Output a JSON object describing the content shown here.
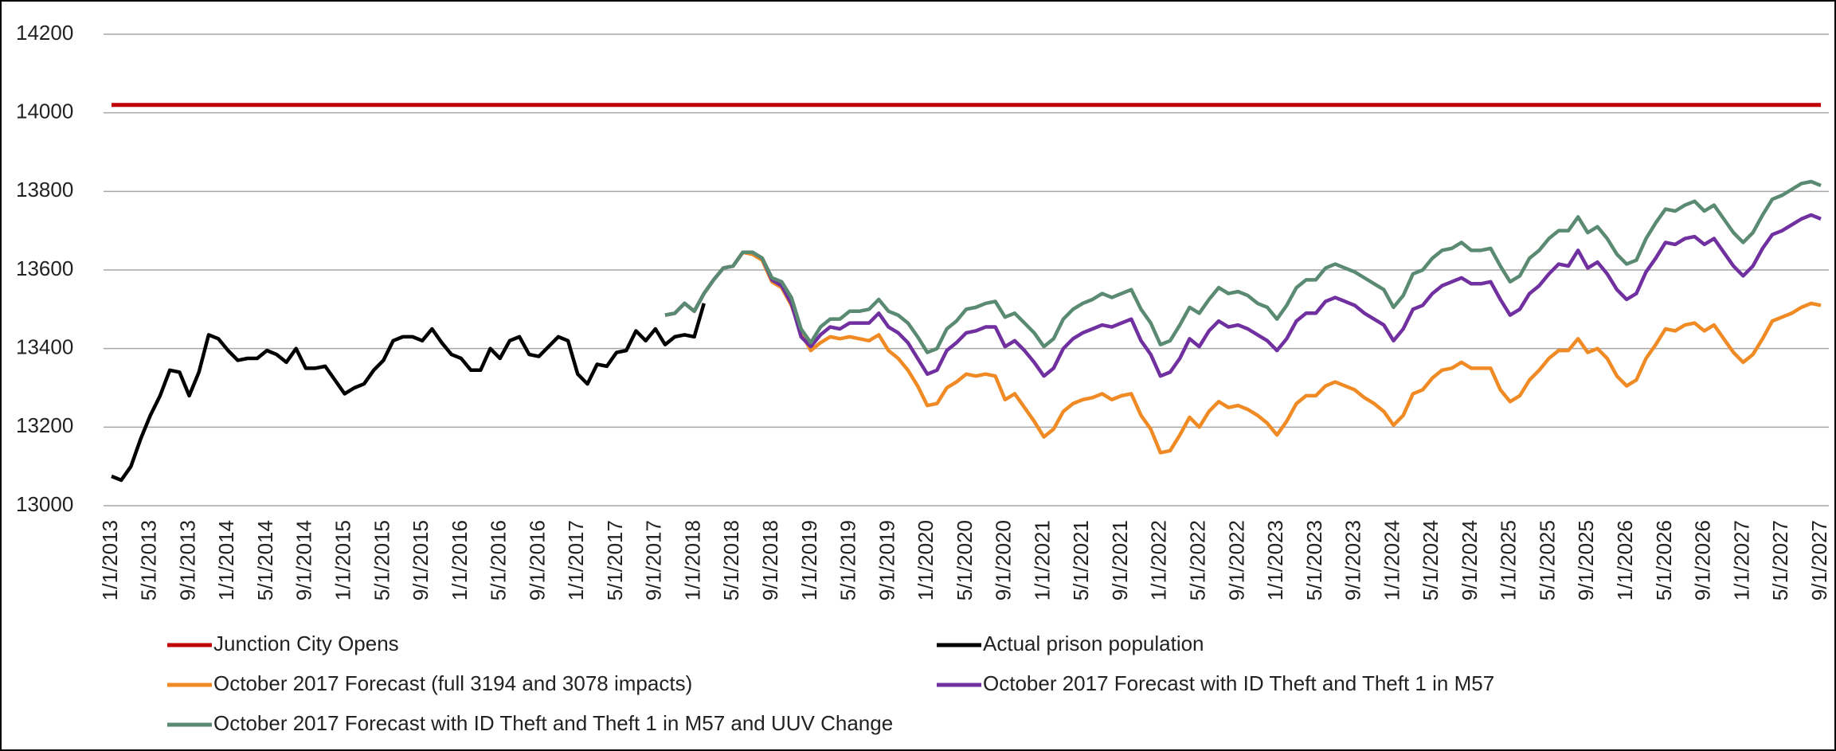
{
  "chart_data": {
    "type": "line",
    "categories": [
      "1/1/2013",
      null,
      null,
      null,
      "5/1/2013",
      null,
      null,
      null,
      "9/1/2013",
      null,
      null,
      null,
      "1/1/2014",
      null,
      null,
      null,
      "5/1/2014",
      null,
      null,
      null,
      "9/1/2014",
      null,
      null,
      null,
      "1/1/2015",
      null,
      null,
      null,
      "5/1/2015",
      null,
      null,
      null,
      "9/1/2015",
      null,
      null,
      null,
      "1/1/2016",
      null,
      null,
      null,
      "5/1/2016",
      null,
      null,
      null,
      "9/1/2016",
      null,
      null,
      null,
      "1/1/2017",
      null,
      null,
      null,
      "5/1/2017",
      null,
      null,
      null,
      "9/1/2017",
      null,
      null,
      null,
      "1/1/2018",
      null,
      null,
      null,
      "5/1/2018",
      null,
      null,
      null,
      "9/1/2018",
      null,
      null,
      null,
      "1/1/2019",
      null,
      null,
      null,
      "5/1/2019",
      null,
      null,
      null,
      "9/1/2019",
      null,
      null,
      null,
      "1/1/2020",
      null,
      null,
      null,
      "5/1/2020",
      null,
      null,
      null,
      "9/1/2020",
      null,
      null,
      null,
      "1/1/2021",
      null,
      null,
      null,
      "5/1/2021",
      null,
      null,
      null,
      "9/1/2021",
      null,
      null,
      null,
      "1/1/2022",
      null,
      null,
      null,
      "5/1/2022",
      null,
      null,
      null,
      "9/1/2022",
      null,
      null,
      null,
      "1/1/2023",
      null,
      null,
      null,
      "5/1/2023",
      null,
      null,
      null,
      "9/1/2023",
      null,
      null,
      null,
      "1/1/2024",
      null,
      null,
      null,
      "5/1/2024",
      null,
      null,
      null,
      "9/1/2024",
      null,
      null,
      null,
      "1/1/2025",
      null,
      null,
      null,
      "5/1/2025",
      null,
      null,
      null,
      "9/1/2025",
      null,
      null,
      null,
      "1/1/2026",
      null,
      null,
      null,
      "5/1/2026",
      null,
      null,
      null,
      "9/1/2026",
      null,
      null,
      null,
      "1/1/2027",
      null,
      null,
      null,
      "5/1/2027",
      null,
      null,
      null,
      "9/1/2027"
    ],
    "reference_line": {
      "name": "Junction City Opens",
      "color": "#c00000",
      "value": 14020
    },
    "series": [
      {
        "name": "Actual prison population",
        "color": "#000000",
        "values": [
          13075,
          13065,
          13100,
          13170,
          13230,
          13280,
          13345,
          13340,
          13280,
          13340,
          13435,
          13425,
          13395,
          13370,
          13375,
          13375,
          13395,
          13385,
          13365,
          13400,
          13350,
          13350,
          13355,
          13320,
          13285,
          13300,
          13310,
          13345,
          13370,
          13420,
          13430,
          13430,
          13420,
          13450,
          13415,
          13385,
          13375,
          13345,
          13345,
          13400,
          13375,
          13420,
          13430,
          13385,
          13380,
          13405,
          13430,
          13420,
          13335,
          13310,
          13360,
          13355,
          13390,
          13395,
          13445,
          13420,
          13450,
          13410,
          13430,
          13435,
          13430,
          13515,
          null,
          null,
          null,
          null,
          null,
          null,
          null,
          null,
          null,
          null,
          null,
          null,
          null,
          null,
          null,
          null,
          null,
          null,
          null,
          null,
          null,
          null,
          null,
          null,
          null,
          null,
          null,
          null,
          null,
          null,
          null,
          null,
          null,
          null,
          null,
          null,
          null,
          null,
          null,
          null,
          null,
          null,
          null,
          null,
          null,
          null,
          null,
          null,
          null,
          null,
          null,
          null,
          null,
          null,
          null,
          null,
          null,
          null,
          null,
          null,
          null,
          null,
          null,
          null,
          null,
          null,
          null,
          null,
          null,
          null,
          null,
          null,
          null,
          null,
          null,
          null,
          null,
          null,
          null,
          null,
          null,
          null,
          null,
          null,
          null,
          null,
          null,
          null,
          null,
          null,
          null,
          null,
          null,
          null,
          null,
          null,
          null,
          null,
          null,
          null,
          null,
          null,
          null,
          null,
          null,
          null,
          null,
          null,
          null,
          null,
          null,
          null,
          null,
          null,
          null
        ]
      },
      {
        "name": "October 2017 Forecast (full 3194 and 3078 impacts)",
        "color": "#f08a24",
        "values": [
          null,
          null,
          null,
          null,
          null,
          null,
          null,
          null,
          null,
          null,
          null,
          null,
          null,
          null,
          null,
          null,
          null,
          null,
          null,
          null,
          null,
          null,
          null,
          null,
          null,
          null,
          null,
          null,
          null,
          null,
          null,
          null,
          null,
          null,
          null,
          null,
          null,
          null,
          null,
          null,
          null,
          null,
          null,
          null,
          null,
          null,
          null,
          null,
          null,
          null,
          null,
          null,
          null,
          null,
          null,
          null,
          null,
          13485,
          13490,
          13515,
          13495,
          13540,
          13575,
          13605,
          13610,
          13645,
          13640,
          13625,
          13570,
          13555,
          13510,
          13440,
          13395,
          13415,
          13430,
          13425,
          13430,
          13425,
          13420,
          13435,
          13395,
          13375,
          13345,
          13305,
          13255,
          13260,
          13300,
          13315,
          13335,
          13330,
          13335,
          13330,
          13270,
          13285,
          13250,
          13215,
          13175,
          13195,
          13240,
          13260,
          13270,
          13275,
          13285,
          13270,
          13280,
          13285,
          13230,
          13195,
          13135,
          13140,
          13180,
          13225,
          13200,
          13240,
          13265,
          13250,
          13255,
          13245,
          13230,
          13210,
          13180,
          13215,
          13260,
          13280,
          13280,
          13305,
          13315,
          13305,
          13295,
          13275,
          13260,
          13240,
          13205,
          13230,
          13285,
          13295,
          13325,
          13345,
          13350,
          13365,
          13350,
          13350,
          13350,
          13295,
          13265,
          13280,
          13320,
          13345,
          13375,
          13395,
          13395,
          13425,
          13390,
          13400,
          13375,
          13330,
          13305,
          13320,
          13375,
          13410,
          13450,
          13445,
          13460,
          13465,
          13445,
          13460,
          13425,
          13390,
          13365,
          13385,
          13425,
          13470,
          13480,
          13490,
          13505,
          13515,
          13510
        ]
      },
      {
        "name": "October 2017 Forecast with ID Theft and Theft 1 in M57",
        "color": "#7030a0",
        "values": [
          null,
          null,
          null,
          null,
          null,
          null,
          null,
          null,
          null,
          null,
          null,
          null,
          null,
          null,
          null,
          null,
          null,
          null,
          null,
          null,
          null,
          null,
          null,
          null,
          null,
          null,
          null,
          null,
          null,
          null,
          null,
          null,
          null,
          null,
          null,
          null,
          null,
          null,
          null,
          null,
          null,
          null,
          null,
          null,
          null,
          null,
          null,
          null,
          null,
          null,
          null,
          null,
          null,
          null,
          null,
          null,
          null,
          13485,
          13490,
          13515,
          13495,
          13540,
          13575,
          13605,
          13610,
          13645,
          13645,
          13630,
          13575,
          13560,
          13515,
          13430,
          13405,
          13435,
          13455,
          13450,
          13465,
          13465,
          13465,
          13490,
          13455,
          13440,
          13415,
          13375,
          13335,
          13345,
          13395,
          13415,
          13440,
          13445,
          13455,
          13455,
          13405,
          13420,
          13395,
          13365,
          13330,
          13350,
          13400,
          13425,
          13440,
          13450,
          13460,
          13455,
          13465,
          13475,
          13420,
          13385,
          13330,
          13340,
          13375,
          13425,
          13405,
          13445,
          13470,
          13455,
          13460,
          13450,
          13435,
          13420,
          13395,
          13425,
          13470,
          13490,
          13490,
          13520,
          13530,
          13520,
          13510,
          13490,
          13475,
          13460,
          13420,
          13450,
          13500,
          13510,
          13540,
          13560,
          13570,
          13580,
          13565,
          13565,
          13570,
          13525,
          13485,
          13500,
          13540,
          13560,
          13590,
          13615,
          13610,
          13650,
          13605,
          13620,
          13590,
          13550,
          13525,
          13540,
          13595,
          13630,
          13670,
          13665,
          13680,
          13685,
          13665,
          13680,
          13645,
          13610,
          13585,
          13610,
          13655,
          13690,
          13700,
          13715,
          13730,
          13740,
          13730
        ]
      },
      {
        "name": "October 2017 Forecast with ID Theft and Theft 1 in M57 and UUV Change",
        "color": "#5b8a72",
        "values": [
          null,
          null,
          null,
          null,
          null,
          null,
          null,
          null,
          null,
          null,
          null,
          null,
          null,
          null,
          null,
          null,
          null,
          null,
          null,
          null,
          null,
          null,
          null,
          null,
          null,
          null,
          null,
          null,
          null,
          null,
          null,
          null,
          null,
          null,
          null,
          null,
          null,
          null,
          null,
          null,
          null,
          null,
          null,
          null,
          null,
          null,
          null,
          null,
          null,
          null,
          null,
          null,
          null,
          null,
          null,
          null,
          null,
          13485,
          13490,
          13515,
          13495,
          13540,
          13575,
          13605,
          13610,
          13645,
          13645,
          13630,
          13580,
          13570,
          13530,
          13450,
          13415,
          13455,
          13475,
          13475,
          13495,
          13495,
          13500,
          13525,
          13495,
          13485,
          13465,
          13430,
          13390,
          13400,
          13450,
          13470,
          13500,
          13505,
          13515,
          13520,
          13480,
          13490,
          13465,
          13440,
          13405,
          13425,
          13475,
          13500,
          13515,
          13525,
          13540,
          13530,
          13540,
          13550,
          13500,
          13465,
          13410,
          13420,
          13460,
          13505,
          13490,
          13525,
          13555,
          13540,
          13545,
          13535,
          13515,
          13505,
          13475,
          13510,
          13555,
          13575,
          13575,
          13605,
          13615,
          13605,
          13595,
          13580,
          13565,
          13550,
          13505,
          13535,
          13590,
          13600,
          13630,
          13650,
          13655,
          13670,
          13650,
          13650,
          13655,
          13610,
          13570,
          13585,
          13630,
          13650,
          13680,
          13700,
          13700,
          13735,
          13695,
          13710,
          13680,
          13640,
          13615,
          13625,
          13680,
          13720,
          13755,
          13750,
          13765,
          13775,
          13750,
          13765,
          13730,
          13695,
          13670,
          13695,
          13740,
          13780,
          13790,
          13805,
          13820,
          13825,
          13815
        ]
      }
    ],
    "ylim": [
      13000,
      14200
    ],
    "yticks": [
      13000,
      13200,
      13400,
      13600,
      13800,
      14000,
      14200
    ],
    "grid": true
  }
}
